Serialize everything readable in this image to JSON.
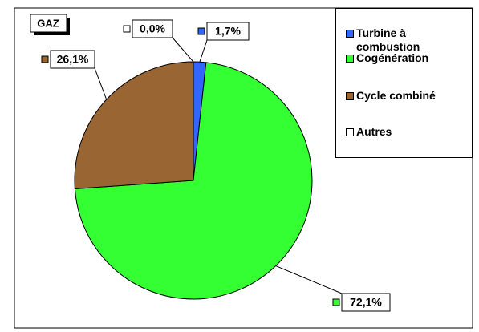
{
  "chart_data": {
    "type": "pie",
    "title": "GAZ",
    "categories": [
      "Turbine à combustion",
      "Cogénération",
      "Cycle combiné",
      "Autres"
    ],
    "values": [
      1.7,
      72.1,
      26.1,
      0.0
    ],
    "value_labels": [
      "1,7%",
      "72,1%",
      "26,1%",
      "0,0%"
    ],
    "colors": [
      "#3366ff",
      "#33ff33",
      "#996633",
      "#ffffff"
    ],
    "legend": "top-right"
  }
}
